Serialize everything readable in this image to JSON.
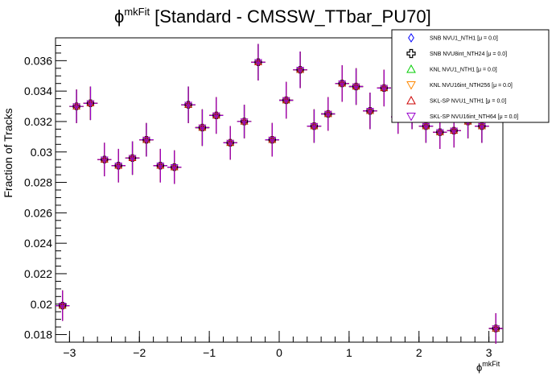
{
  "title": {
    "symbol": "ϕ",
    "superscript": "mkFit",
    "text": "[Standard - CMSSW_TTbar_PU70]"
  },
  "chart_data": {
    "type": "scatter",
    "title": "ϕmkFit [Standard - CMSSW_TTbar_PU70]",
    "xlabel": "ϕmkFit",
    "xlabel_symbol": "ϕ",
    "xlabel_sup": "mkFit",
    "ylabel": "Fraction of Tracks",
    "xlim": [
      -3.2,
      3.2
    ],
    "ylim": [
      0.0175,
      0.0375
    ],
    "x_ticks": [
      -3,
      -2,
      -1,
      0,
      1,
      2,
      3
    ],
    "x_tick_labels": [
      "−3",
      "−2",
      "−1",
      "0",
      "1",
      "2",
      "3"
    ],
    "y_ticks": [
      0.018,
      0.02,
      0.022,
      0.024,
      0.026,
      0.028,
      0.03,
      0.032,
      0.034,
      0.036
    ],
    "y_tick_labels": [
      "0.018",
      "0.02",
      "0.022",
      "0.024",
      "0.026",
      "0.028",
      "0.03",
      "0.032",
      "0.034",
      "0.036"
    ],
    "grid": false,
    "legend_position": "top-right",
    "bin_half_width": 0.1,
    "x": [
      -3.1,
      -2.9,
      -2.7,
      -2.5,
      -2.3,
      -2.1,
      -1.9,
      -1.7,
      -1.5,
      -1.3,
      -1.1,
      -0.9,
      -0.7,
      -0.5,
      -0.3,
      -0.1,
      0.1,
      0.3,
      0.5,
      0.7,
      0.9,
      1.1,
      1.3,
      1.5,
      1.7,
      1.9,
      2.1,
      2.3,
      2.5,
      2.7,
      2.9,
      3.1
    ],
    "values": [
      0.0199,
      0.033,
      0.0332,
      0.0295,
      0.0291,
      0.0296,
      0.0308,
      0.0291,
      0.029,
      0.0331,
      0.0316,
      0.0324,
      0.0306,
      0.032,
      0.0359,
      0.0308,
      0.0334,
      0.0354,
      0.0317,
      0.0325,
      0.0345,
      0.0343,
      0.0327,
      0.0342,
      0.0323,
      0.0326,
      0.0317,
      0.0313,
      0.0314,
      0.032,
      0.0317,
      0.0184
    ],
    "errors": [
      0.001,
      0.0011,
      0.0011,
      0.0011,
      0.0011,
      0.0011,
      0.0011,
      0.0011,
      0.0011,
      0.0012,
      0.0012,
      0.0012,
      0.0011,
      0.0011,
      0.0012,
      0.0011,
      0.0012,
      0.0012,
      0.0011,
      0.0011,
      0.0012,
      0.0012,
      0.0012,
      0.0012,
      0.0011,
      0.0011,
      0.0011,
      0.0011,
      0.0011,
      0.0011,
      0.0011,
      0.001
    ],
    "series": [
      {
        "name": "SNB NVU1_NTH1 [μ = 0.0]",
        "color": "#0000ff",
        "marker": "diamond"
      },
      {
        "name": "SNB NVU8int_NTH24 [μ = 0.0]",
        "color": "#000000",
        "marker": "cross"
      },
      {
        "name": "KNL NVU1_NTH1 [μ = 0.0]",
        "color": "#00cc00",
        "marker": "triangle-up"
      },
      {
        "name": "KNL NVU16int_NTH256 [μ = 0.0]",
        "color": "#ff8800",
        "marker": "triangle-down"
      },
      {
        "name": "SKL-SP NVU1_NTH1 [μ = 0.0]",
        "color": "#cc0000",
        "marker": "triangle-up"
      },
      {
        "name": "SKL-SP NVU16int_NTH64 [μ = 0.0]",
        "color": "#9900cc",
        "marker": "triangle-down"
      }
    ]
  }
}
